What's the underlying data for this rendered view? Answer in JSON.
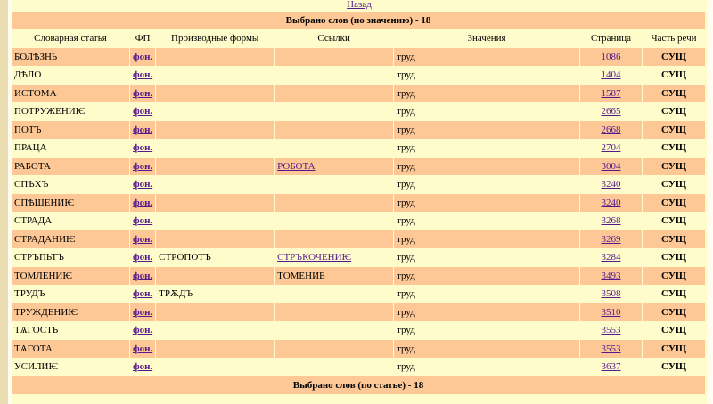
{
  "back_link": "Назад",
  "title_top": "Выбрано слов (по значению) - 18",
  "title_bottom": "Выбрано слов (по статье) - 18",
  "columns": [
    "Словарная статья",
    "ФП",
    "Производные формы",
    "Ссылки",
    "Значения",
    "Страница",
    "Часть речи"
  ],
  "rows": [
    {
      "entry": "БОЛѢЗНЬ",
      "fp": "фон.",
      "forms": "",
      "ref": "",
      "ref_link": false,
      "meaning": "труд",
      "page": "1086",
      "pos": "СУЩ"
    },
    {
      "entry": "ДѢЛО",
      "fp": "фон.",
      "forms": "",
      "ref": "",
      "ref_link": false,
      "meaning": "труд",
      "page": "1404",
      "pos": "СУЩ"
    },
    {
      "entry": "ИСТОМА",
      "fp": "фон.",
      "forms": "",
      "ref": "",
      "ref_link": false,
      "meaning": "труд",
      "page": "1587",
      "pos": "СУЩ"
    },
    {
      "entry": "ПОТРУЖЕНИѤ",
      "fp": "фон.",
      "forms": "",
      "ref": "",
      "ref_link": false,
      "meaning": "труд",
      "page": "2665",
      "pos": "СУЩ"
    },
    {
      "entry": "ПОТЪ",
      "fp": "фон.",
      "forms": "",
      "ref": "",
      "ref_link": false,
      "meaning": "труд",
      "page": "2668",
      "pos": "СУЩ"
    },
    {
      "entry": "ПРАЦА",
      "fp": "фон.",
      "forms": "",
      "ref": "",
      "ref_link": false,
      "meaning": "труд",
      "page": "2704",
      "pos": "СУЩ"
    },
    {
      "entry": "РАБОТА",
      "fp": "фон.",
      "forms": "",
      "ref": "РОБОТА",
      "ref_link": true,
      "meaning": "труд",
      "page": "3004",
      "pos": "СУЩ"
    },
    {
      "entry": "СПѢХЪ",
      "fp": "фон.",
      "forms": "",
      "ref": "",
      "ref_link": false,
      "meaning": "труд",
      "page": "3240",
      "pos": "СУЩ"
    },
    {
      "entry": "СПѢШЕНИѤ",
      "fp": "фон.",
      "forms": "",
      "ref": "",
      "ref_link": false,
      "meaning": "труд",
      "page": "3240",
      "pos": "СУЩ"
    },
    {
      "entry": "СТРАДА",
      "fp": "фон.",
      "forms": "",
      "ref": "",
      "ref_link": false,
      "meaning": "труд",
      "page": "3268",
      "pos": "СУЩ"
    },
    {
      "entry": "СТРАДАНИѤ",
      "fp": "фон.",
      "forms": "",
      "ref": "",
      "ref_link": false,
      "meaning": "труд",
      "page": "3269",
      "pos": "СУЩ"
    },
    {
      "entry": "СТРЪПЬТЪ",
      "fp": "фон.",
      "forms": "СТРОПОТЪ",
      "ref": "СТРЪКОЧЕНИѤ",
      "ref_link": true,
      "meaning": "труд",
      "page": "3284",
      "pos": "СУЩ"
    },
    {
      "entry": "ТОМЛЕНИѤ",
      "fp": "фон.",
      "forms": "",
      "ref": "ТОМЕНИЕ",
      "ref_link": false,
      "meaning": "труд",
      "page": "3493",
      "pos": "СУЩ"
    },
    {
      "entry": "ТРУДЪ",
      "fp": "фон.",
      "forms": "ТРѪДЪ",
      "ref": "",
      "ref_link": false,
      "meaning": "труд",
      "page": "3508",
      "pos": "СУЩ"
    },
    {
      "entry": "ТРУЖДЕНИѤ",
      "fp": "фон.",
      "forms": "",
      "ref": "",
      "ref_link": false,
      "meaning": "труд",
      "page": "3510",
      "pos": "СУЩ"
    },
    {
      "entry": "ТѦГОСТЬ",
      "fp": "фон.",
      "forms": "",
      "ref": "",
      "ref_link": false,
      "meaning": "труд",
      "page": "3553",
      "pos": "СУЩ"
    },
    {
      "entry": "ТѦГОТА",
      "fp": "фон.",
      "forms": "",
      "ref": "",
      "ref_link": false,
      "meaning": "труд",
      "page": "3553",
      "pos": "СУЩ"
    },
    {
      "entry": "УСИЛИѤ",
      "fp": "фон.",
      "forms": "",
      "ref": "",
      "ref_link": false,
      "meaning": "труд",
      "page": "3637",
      "pos": "СУЩ"
    }
  ]
}
